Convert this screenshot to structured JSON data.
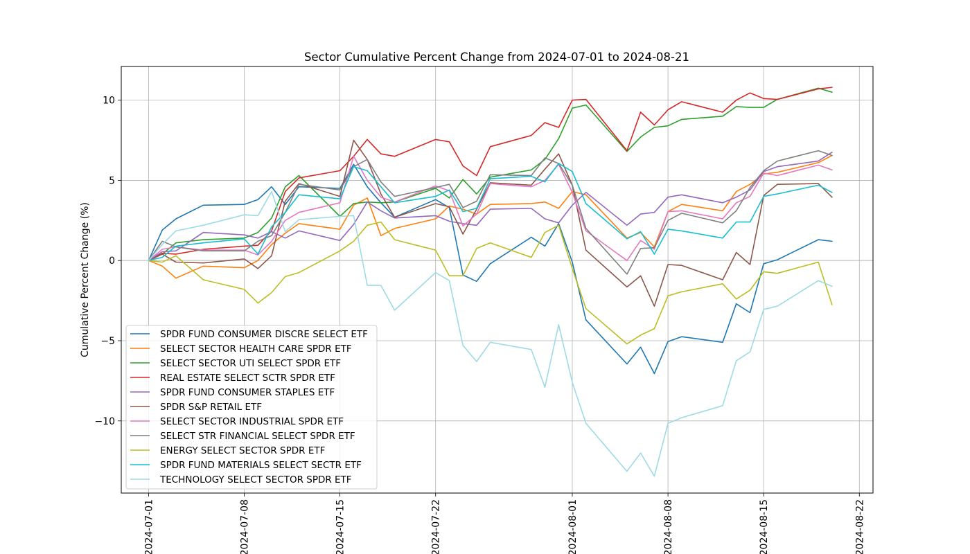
{
  "chart_data": {
    "type": "line",
    "title": "Sector Cumulative Percent Change from 2024-07-01 to 2024-08-21",
    "xlabel": "",
    "ylabel": "Cumulative Percent Change (%)",
    "x_ticks": [
      "2024-07-01",
      "2024-07-08",
      "2024-07-15",
      "2024-07-22",
      "2024-08-01",
      "2024-08-08",
      "2024-08-15",
      "2024-08-22"
    ],
    "y_ticks": [
      10,
      5,
      0,
      -5,
      -10
    ],
    "y_tick_labels": [
      "10",
      "5",
      "0",
      "−5",
      "−10"
    ],
    "xlim": [
      "2024-06-29",
      "2024-08-23"
    ],
    "ylim": [
      -14.5,
      12.1
    ],
    "grid": true,
    "legend_position": "lower-left",
    "x": [
      "2024-07-01",
      "2024-07-02",
      "2024-07-03",
      "2024-07-05",
      "2024-07-08",
      "2024-07-09",
      "2024-07-10",
      "2024-07-11",
      "2024-07-12",
      "2024-07-15",
      "2024-07-16",
      "2024-07-17",
      "2024-07-18",
      "2024-07-19",
      "2024-07-22",
      "2024-07-23",
      "2024-07-24",
      "2024-07-25",
      "2024-07-26",
      "2024-07-29",
      "2024-07-30",
      "2024-07-31",
      "2024-08-01",
      "2024-08-02",
      "2024-08-05",
      "2024-08-06",
      "2024-08-07",
      "2024-08-08",
      "2024-08-09",
      "2024-08-12",
      "2024-08-13",
      "2024-08-14",
      "2024-08-15",
      "2024-08-16",
      "2024-08-19",
      "2024-08-20"
    ],
    "series": [
      {
        "name": "SPDR FUND CONSUMER DISCRE SELECT ETF",
        "color": "#1f77b4",
        "values": [
          0,
          1.9,
          2.6,
          3.45,
          3.5,
          3.8,
          4.6,
          3.5,
          4.6,
          4.5,
          6.0,
          4.6,
          3.6,
          2.7,
          3.8,
          3.3,
          -0.9,
          -1.3,
          -0.2,
          1.45,
          0.9,
          2.3,
          -0.1,
          -3.7,
          -6.45,
          -5.4,
          -7.05,
          -5.05,
          -4.75,
          -5.1,
          -2.7,
          -3.25,
          -0.2,
          0.05,
          1.3,
          1.2
        ]
      },
      {
        "name": "SELECT SECTOR HEALTH CARE SPDR ETF",
        "color": "#ff7f0e",
        "values": [
          0,
          -0.35,
          -1.1,
          -0.35,
          -0.45,
          0.0,
          1.0,
          1.7,
          2.3,
          1.95,
          3.45,
          3.9,
          1.55,
          2.0,
          2.6,
          3.4,
          3.2,
          2.9,
          3.5,
          3.55,
          3.65,
          3.25,
          4.3,
          4.1,
          1.4,
          1.75,
          0.85,
          3.05,
          3.5,
          3.1,
          4.3,
          4.75,
          5.4,
          5.5,
          6.1,
          6.55
        ]
      },
      {
        "name": "SELECT SECTOR UTI SELECT SPDR ETF",
        "color": "#2ca02c",
        "values": [
          0,
          0.4,
          1.1,
          1.3,
          1.4,
          1.75,
          2.65,
          4.6,
          5.3,
          2.75,
          3.55,
          3.65,
          3.6,
          3.65,
          4.5,
          3.9,
          5.05,
          4.15,
          5.2,
          5.65,
          6.3,
          7.6,
          9.5,
          9.7,
          6.8,
          7.7,
          8.3,
          8.4,
          8.8,
          9.0,
          9.6,
          9.55,
          9.55,
          10.05,
          10.75,
          10.5
        ]
      },
      {
        "name": "REAL ESTATE SELECT SCTR SPDR ETF",
        "color": "#d62728",
        "values": [
          0,
          0.45,
          0.4,
          0.7,
          0.9,
          0.95,
          1.85,
          4.3,
          5.15,
          5.6,
          6.5,
          7.55,
          6.65,
          6.5,
          7.55,
          7.4,
          5.9,
          5.3,
          7.1,
          7.8,
          8.6,
          8.3,
          10.0,
          10.05,
          6.85,
          9.25,
          8.45,
          9.4,
          9.9,
          9.25,
          10.0,
          10.45,
          10.1,
          10.05,
          10.7,
          10.8
        ]
      },
      {
        "name": "SPDR FUND CONSUMER STAPLES ETF",
        "color": "#9467bd",
        "values": [
          0,
          0.55,
          0.6,
          1.75,
          1.6,
          1.4,
          1.8,
          1.4,
          1.85,
          1.25,
          2.25,
          3.65,
          3.1,
          2.65,
          2.8,
          2.45,
          2.3,
          2.2,
          3.2,
          3.25,
          2.6,
          2.35,
          3.45,
          4.25,
          2.2,
          2.9,
          3.0,
          3.95,
          4.1,
          3.6,
          3.95,
          4.4,
          5.55,
          5.85,
          6.2,
          6.75
        ]
      },
      {
        "name": "SPDR S&P RETAIL ETF",
        "color": "#8c564b",
        "values": [
          0,
          0.4,
          -0.1,
          -0.15,
          0.1,
          -0.5,
          0.3,
          3.7,
          4.8,
          4.0,
          7.5,
          6.3,
          4.15,
          2.7,
          3.55,
          3.35,
          1.65,
          3.2,
          4.85,
          4.7,
          5.7,
          6.65,
          4.7,
          0.65,
          -1.65,
          -0.95,
          -2.85,
          -0.25,
          -0.3,
          -1.2,
          0.5,
          -0.25,
          4.05,
          4.75,
          4.8,
          3.95
        ]
      },
      {
        "name": "SELECT SECTOR INDUSTRIAL SPDR ETF",
        "color": "#e377c2",
        "values": [
          0,
          0.7,
          0.85,
          0.65,
          0.65,
          0.35,
          1.2,
          2.5,
          3.0,
          3.6,
          6.5,
          5.0,
          3.95,
          3.65,
          4.65,
          4.35,
          2.15,
          2.9,
          4.8,
          4.6,
          5.0,
          6.0,
          4.25,
          1.85,
          0.0,
          1.25,
          0.7,
          3.05,
          3.1,
          2.6,
          3.6,
          4.0,
          5.45,
          5.3,
          5.95,
          5.65
        ]
      },
      {
        "name": "SELECT STR FINANCIAL SELECT SPDR ETF",
        "color": "#7f7f7f",
        "values": [
          0,
          1.2,
          0.85,
          0.6,
          0.6,
          1.2,
          1.55,
          3.0,
          4.75,
          4.4,
          5.85,
          6.3,
          4.9,
          4.0,
          4.55,
          4.75,
          3.3,
          3.7,
          5.35,
          5.3,
          6.4,
          6.05,
          4.7,
          2.0,
          -0.85,
          0.75,
          0.8,
          2.5,
          2.95,
          2.35,
          3.1,
          4.55,
          5.6,
          6.2,
          6.85,
          6.55
        ]
      },
      {
        "name": "ENERGY SELECT SECTOR SPDR ETF",
        "color": "#bcbd22",
        "values": [
          0,
          -0.1,
          0.3,
          -1.2,
          -1.8,
          -2.65,
          -2.0,
          -1.0,
          -0.75,
          0.6,
          1.2,
          2.2,
          2.4,
          1.3,
          0.65,
          -0.95,
          -0.95,
          0.75,
          1.1,
          0.2,
          1.75,
          2.2,
          -0.5,
          -3.0,
          -5.2,
          -4.65,
          -4.25,
          -2.2,
          -1.95,
          -1.45,
          -2.4,
          -1.85,
          -0.7,
          -0.8,
          -0.1,
          -2.75
        ]
      },
      {
        "name": "SPDR FUND MATERIALS SELECT SECTR ETF",
        "color": "#17becf",
        "values": [
          0,
          0.2,
          0.9,
          1.1,
          1.35,
          0.4,
          2.1,
          3.0,
          4.1,
          3.85,
          5.85,
          5.6,
          4.6,
          3.6,
          4.0,
          4.4,
          3.05,
          3.25,
          5.1,
          5.25,
          4.9,
          6.05,
          5.55,
          3.55,
          1.35,
          1.8,
          0.4,
          1.95,
          1.85,
          1.4,
          2.4,
          2.4,
          4.0,
          4.15,
          4.7,
          4.25
        ]
      },
      {
        "name": "TECHNOLOGY SELECT SECTOR SPDR ETF",
        "color": "#9edae5",
        "values": [
          0,
          1.0,
          1.85,
          2.2,
          2.85,
          2.8,
          4.3,
          1.8,
          2.55,
          2.75,
          2.8,
          -1.55,
          -1.55,
          -3.1,
          -0.75,
          -1.25,
          -5.3,
          -6.3,
          -5.1,
          -5.55,
          -7.9,
          -4.0,
          -7.6,
          -10.15,
          -13.15,
          -12.0,
          -13.45,
          -10.15,
          -9.8,
          -9.05,
          -6.25,
          -5.7,
          -3.05,
          -2.85,
          -1.25,
          -1.6
        ]
      }
    ]
  }
}
